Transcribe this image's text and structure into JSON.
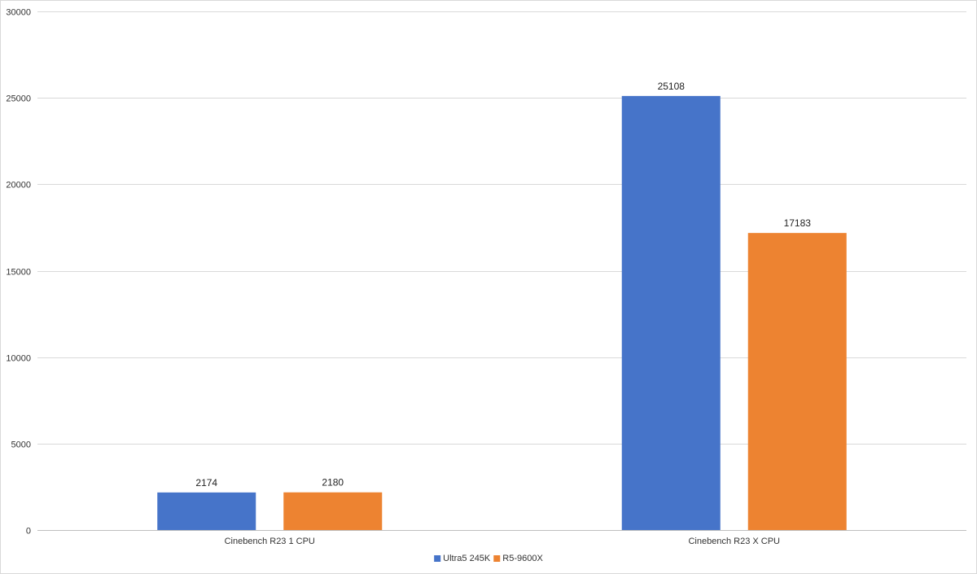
{
  "chart_data": {
    "type": "bar",
    "title": "",
    "xlabel": "",
    "ylabel": "",
    "categories": [
      "Cinebench R23 1 CPU",
      "Cinebench R23 X CPU"
    ],
    "series": [
      {
        "name": "Ultra5 245K",
        "values": [
          2174,
          25108
        ],
        "color": "#4674c9"
      },
      {
        "name": "R5-9600X",
        "values": [
          2180,
          17183
        ],
        "color": "#ed8331"
      }
    ],
    "ylim": [
      0,
      30000
    ],
    "yticks": [
      0,
      5000,
      10000,
      15000,
      20000,
      25000,
      30000
    ],
    "grid": true,
    "data_labels": true,
    "legend_position": "bottom",
    "gridline_color": "#d9d9d9",
    "axis_color": "#bfbfbf"
  }
}
